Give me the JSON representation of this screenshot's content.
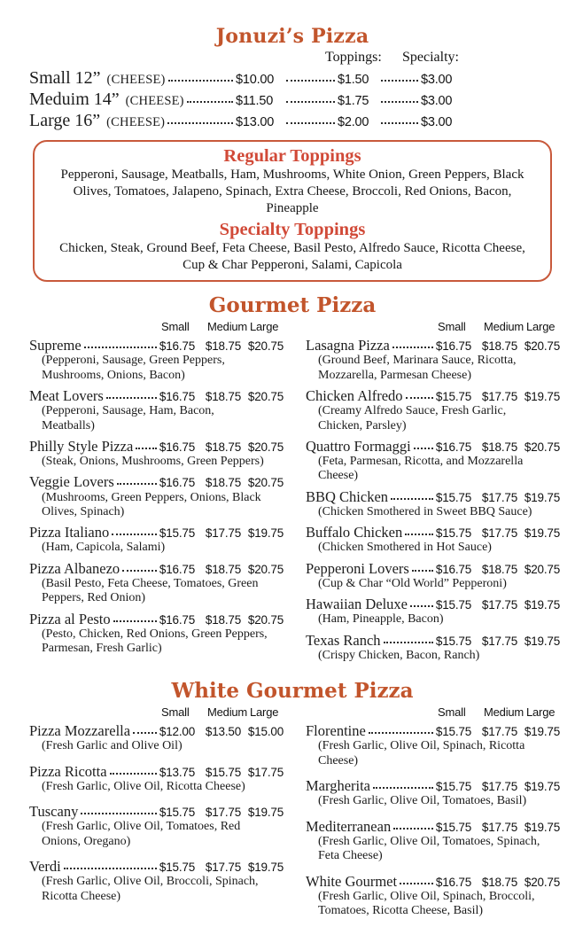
{
  "title": "Jonuzi’s Pizza",
  "colors": {
    "heading_orange": "#C2552C",
    "toppings_red": "#D14A38",
    "box_border": "#C8593B"
  },
  "size_table": {
    "toppings_header": "Toppings:",
    "specialty_header": "Specialty:",
    "rows": [
      {
        "size": "Small 12”",
        "cheese": "(CHEESE)",
        "price": "$10.00",
        "topping": "$1.50",
        "specialty": "$3.00"
      },
      {
        "size": "Meduim 14”",
        "cheese": "(CHEESE)",
        "price": "$11.50",
        "topping": "$1.75",
        "specialty": "$3.00"
      },
      {
        "size": "Large 16”",
        "cheese": "(CHEESE)",
        "price": "$13.00",
        "topping": "$2.00",
        "specialty": "$3.00"
      }
    ]
  },
  "toppings_box": {
    "regular_title": "Regular Toppings",
    "regular_items": "Pepperoni, Sausage, Meatballs, Ham, Mushrooms, White Onion, Green Peppers, Black Olives, Tomatoes, Jalapeno, Spinach, Extra Cheese, Broccoli, Red Onions, Bacon, Pineapple",
    "specialty_title": "Specialty Toppings",
    "specialty_items": "Chicken, Steak, Ground Beef, Feta Cheese, Basil Pesto, Alfredo Sauce, Ricotta Cheese, Cup & Char Pepperoni, Salami, Capicola"
  },
  "sections": [
    {
      "heading": "Gourmet Pizza",
      "col_headers": [
        "Small",
        "Medium",
        "Large"
      ],
      "left": [
        {
          "name": "Supreme",
          "prices": [
            "$16.75",
            "$18.75",
            "$20.75"
          ],
          "desc": "(Pepperoni, Sausage, Green Peppers, Mushrooms, Onions, Bacon)"
        },
        {
          "name": "Meat Lovers",
          "prices": [
            "$16.75",
            "$18.75",
            "$20.75"
          ],
          "desc": "(Pepperoni, Sausage, Ham, Bacon, Meatballs)"
        },
        {
          "name": "Philly Style Pizza",
          "prices": [
            "$16.75",
            "$18.75",
            "$20.75"
          ],
          "desc": "(Steak, Onions, Mushrooms, Green Peppers)"
        },
        {
          "name": "Veggie Lovers",
          "prices": [
            "$16.75",
            "$18.75",
            "$20.75"
          ],
          "desc": "(Mushrooms, Green Peppers, Onions, Black Olives, Spinach)"
        },
        {
          "name": "Pizza Italiano",
          "prices": [
            "$15.75",
            "$17.75",
            "$19.75"
          ],
          "desc": "(Ham, Capicola, Salami)"
        },
        {
          "name": "Pizza Albanezo",
          "prices": [
            "$16.75",
            "$18.75",
            "$20.75"
          ],
          "desc": "(Basil Pesto, Feta Cheese, Tomatoes, Green Peppers, Red Onion)"
        },
        {
          "name": "Pizza al Pesto",
          "prices": [
            "$16.75",
            "$18.75",
            "$20.75"
          ],
          "desc": "(Pesto, Chicken, Red Onions, Green Peppers, Parmesan, Fresh Garlic)"
        }
      ],
      "right": [
        {
          "name": "Lasagna Pizza",
          "prices": [
            "$16.75",
            "$18.75",
            "$20.75"
          ],
          "desc": "(Ground Beef, Marinara Sauce, Ricotta, Mozzarella, Parmesan Cheese)"
        },
        {
          "name": "Chicken Alfredo",
          "prices": [
            "$15.75",
            "$17.75",
            "$19.75"
          ],
          "desc": "(Creamy Alfredo Sauce, Fresh Garlic, Chicken, Parsley)"
        },
        {
          "name": "Quattro Formaggi",
          "prices": [
            "$16.75",
            "$18.75",
            "$20.75"
          ],
          "desc": "(Feta, Parmesan, Ricotta, and Mozzarella Cheese)"
        },
        {
          "name": "BBQ Chicken",
          "prices": [
            "$15.75",
            "$17.75",
            "$19.75"
          ],
          "desc": "(Chicken Smothered in Sweet BBQ Sauce)"
        },
        {
          "name": "Buffalo Chicken",
          "prices": [
            "$15.75",
            "$17.75",
            "$19.75"
          ],
          "desc": "(Chicken Smothered in Hot Sauce)"
        },
        {
          "name": "Pepperoni Lovers",
          "prices": [
            "$16.75",
            "$18.75",
            "$20.75"
          ],
          "desc": "(Cup & Char “Old World” Pepperoni)"
        },
        {
          "name": "Hawaiian Deluxe",
          "prices": [
            "$15.75",
            "$17.75",
            "$19.75"
          ],
          "desc": "(Ham, Pineapple, Bacon)"
        },
        {
          "name": "Texas Ranch",
          "prices": [
            "$15.75",
            "$17.75",
            "$19.75"
          ],
          "desc": "(Crispy Chicken, Bacon, Ranch)"
        }
      ]
    },
    {
      "heading": "White Gourmet Pizza",
      "col_headers": [
        "Small",
        "Medium",
        "Large"
      ],
      "left": [
        {
          "name": "Pizza Mozzarella",
          "prices": [
            "$12.00",
            "$13.50",
            "$15.00"
          ],
          "desc": "(Fresh Garlic and Olive Oil)"
        },
        {
          "name": "Pizza Ricotta",
          "prices": [
            "$13.75",
            "$15.75",
            "$17.75"
          ],
          "desc": "(Fresh Garlic, Olive Oil, Ricotta Cheese)"
        },
        {
          "name": "Tuscany",
          "prices": [
            "$15.75",
            "$17.75",
            "$19.75"
          ],
          "desc": "(Fresh Garlic, Olive Oil, Tomatoes, Red Onions, Oregano)"
        },
        {
          "name": "Verdi",
          "prices": [
            "$15.75",
            "$17.75",
            "$19.75"
          ],
          "desc": "(Fresh Garlic, Olive Oil, Broccoli, Spinach, Ricotta Cheese)"
        }
      ],
      "right": [
        {
          "name": "Florentine",
          "prices": [
            "$15.75",
            "$17.75",
            "$19.75"
          ],
          "desc": "(Fresh Garlic, Olive Oil, Spinach, Ricotta Cheese)"
        },
        {
          "name": "Margherita",
          "prices": [
            "$15.75",
            "$17.75",
            "$19.75"
          ],
          "desc": "(Fresh Garlic, Olive Oil, Tomatoes, Basil)"
        },
        {
          "name": "Mediterranean",
          "prices": [
            "$15.75",
            "$17.75",
            "$19.75"
          ],
          "desc": "(Fresh Garlic, Olive Oil, Tomatoes, Spinach, Feta Cheese)"
        },
        {
          "name": "White Gourmet",
          "prices": [
            "$16.75",
            "$18.75",
            "$20.75"
          ],
          "desc": "(Fresh Garlic, Olive Oil, Spinach, Broccoli, Tomatoes, Ricotta Cheese, Basil)"
        }
      ]
    }
  ]
}
